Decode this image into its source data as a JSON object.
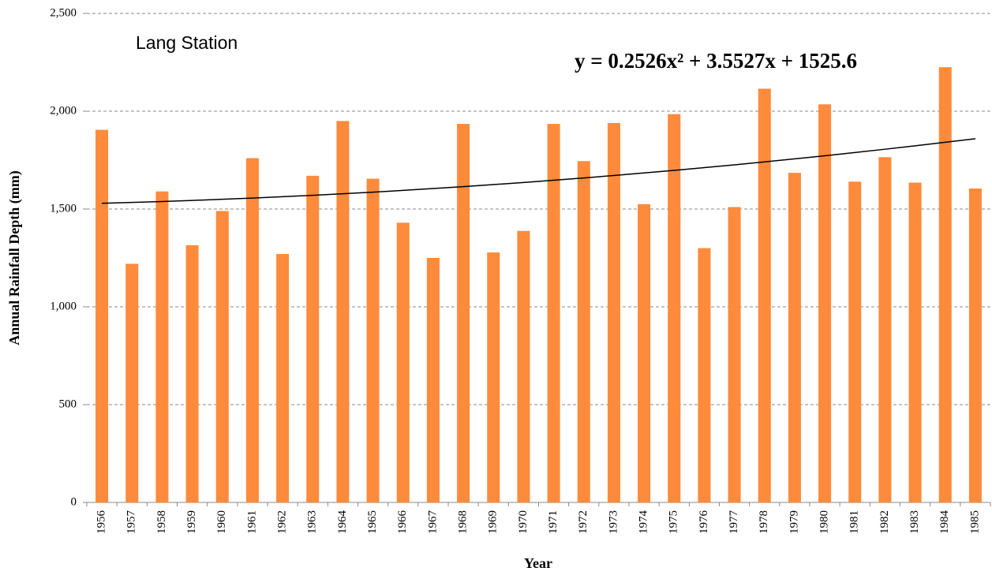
{
  "chart_data": {
    "type": "bar",
    "title": "Lang Station",
    "annotation": "y = 0.2526x² + 3.5527x + 1525.6",
    "x_label": "Year",
    "y_label": "Annual Rainfall Depth (mm)",
    "categories": [
      "1956",
      "1957",
      "1958",
      "1959",
      "1960",
      "1961",
      "1962",
      "1963",
      "1964",
      "1965",
      "1966",
      "1967",
      "1968",
      "1969",
      "1970",
      "1971",
      "1972",
      "1973",
      "1974",
      "1975",
      "1976",
      "1977",
      "1978",
      "1979",
      "1980",
      "1981",
      "1982",
      "1983",
      "1984",
      "1985"
    ],
    "values": [
      1905,
      1220,
      1590,
      1315,
      1490,
      1760,
      1270,
      1670,
      1950,
      1655,
      1430,
      1250,
      1935,
      1278,
      1388,
      1935,
      1745,
      1940,
      1525,
      1985,
      1300,
      1510,
      2115,
      1685,
      2035,
      1640,
      1765,
      1635,
      2225,
      1605
    ],
    "color": "#fd8b3b",
    "trendline": {
      "color": "#000000",
      "values": [
        1529.4,
        1533.7,
        1538.5,
        1543.9,
        1549.7,
        1556.0,
        1562.8,
        1570.2,
        1578.0,
        1586.4,
        1595.2,
        1604.6,
        1614.5,
        1624.8,
        1635.7,
        1647.1,
        1659.0,
        1671.4,
        1684.3,
        1697.7,
        1711.6,
        1726.0,
        1740.9,
        1756.4,
        1772.3,
        1788.7,
        1805.7,
        1823.1,
        1841.1,
        1859.5
      ]
    },
    "ylim": [
      0,
      2500
    ],
    "yticks": [
      0,
      {
        "value": 500,
        "label": "500"
      },
      {
        "value": 1000,
        "label": "1,000"
      },
      {
        "value": 1500,
        "label": "1,500"
      },
      {
        "value": 2000,
        "label": "2,000"
      },
      {
        "value": 2500,
        "label": "2,500"
      }
    ],
    "grid": true
  }
}
